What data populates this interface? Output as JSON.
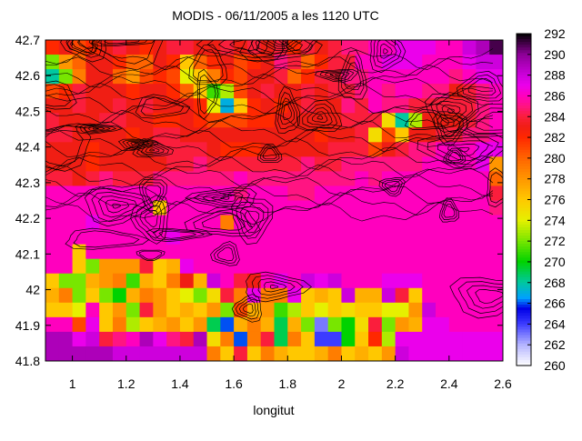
{
  "chart_data": {
    "type": "heatmap",
    "title": "MODIS - 06/11/2005 a les 1120 UTC",
    "xlabel": "longitut",
    "ylabel": "",
    "xlim": [
      0.9,
      2.6
    ],
    "ylim": [
      41.8,
      42.7
    ],
    "x_ticks": [
      "1",
      "1.2",
      "1.4",
      "1.6",
      "1.8",
      "2",
      "2.2",
      "2.4",
      "2.6"
    ],
    "x_tick_values": [
      1.0,
      1.2,
      1.4,
      1.6,
      1.8,
      2.0,
      2.2,
      2.4,
      2.6
    ],
    "y_ticks": [
      "41.8",
      "41.9",
      "42",
      "42.1",
      "42.2",
      "42.3",
      "42.4",
      "42.5",
      "42.6",
      "42.7"
    ],
    "y_tick_values": [
      41.8,
      41.9,
      42.0,
      42.1,
      42.2,
      42.3,
      42.4,
      42.5,
      42.6,
      42.7
    ],
    "colorbar": {
      "min": 260,
      "max": 292,
      "ticks": [
        "292",
        "290",
        "288",
        "286",
        "284",
        "282",
        "280",
        "278",
        "276",
        "274",
        "272",
        "270",
        "268",
        "266",
        "264",
        "262",
        "260"
      ],
      "tick_values": [
        292,
        290,
        288,
        286,
        284,
        282,
        280,
        278,
        276,
        274,
        272,
        270,
        268,
        266,
        264,
        262,
        260
      ]
    },
    "grid": false,
    "overlay": "black contour lines",
    "columns": 34,
    "rows": 22,
    "z": [
      [
        282,
        283,
        281,
        282,
        283,
        284,
        283,
        282,
        283,
        284,
        284,
        283,
        283,
        284,
        283,
        284,
        283,
        284,
        282,
        284,
        283,
        284,
        285,
        285,
        286,
        286,
        287,
        287,
        287,
        286,
        286,
        288,
        289,
        291
      ],
      [
        272,
        278,
        280,
        283,
        283,
        282,
        280,
        280,
        283,
        282,
        276,
        280,
        282,
        283,
        281,
        282,
        283,
        285,
        284,
        280,
        282,
        284,
        284,
        286,
        286,
        287,
        287,
        287,
        286,
        286,
        286,
        287,
        288,
        288
      ],
      [
        268,
        272,
        279,
        283,
        283,
        280,
        278,
        281,
        282,
        281,
        274,
        276,
        279,
        282,
        281,
        283,
        283,
        284,
        280,
        282,
        284,
        284,
        285,
        285,
        286,
        286,
        286,
        286,
        286,
        286,
        285,
        286,
        287,
        287
      ],
      [
        281,
        282,
        284,
        283,
        283,
        283,
        282,
        283,
        283,
        282,
        280,
        276,
        271,
        273,
        281,
        283,
        284,
        283,
        283,
        284,
        283,
        284,
        284,
        285,
        286,
        285,
        286,
        286,
        285,
        285,
        283,
        284,
        285,
        286
      ],
      [
        283,
        283,
        284,
        283,
        283,
        284,
        283,
        284,
        283,
        283,
        283,
        282,
        274,
        267,
        276,
        282,
        283,
        282,
        283,
        284,
        283,
        283,
        285,
        284,
        286,
        285,
        285,
        284,
        284,
        284,
        284,
        284,
        285,
        286
      ],
      [
        284,
        283,
        283,
        283,
        284,
        284,
        283,
        283,
        282,
        282,
        283,
        282,
        281,
        281,
        281,
        282,
        282,
        283,
        283,
        283,
        283,
        283,
        284,
        284,
        284,
        275,
        268,
        273,
        283,
        283,
        283,
        284,
        285,
        286
      ],
      [
        284,
        284,
        283,
        283,
        283,
        283,
        282,
        283,
        284,
        284,
        283,
        283,
        283,
        283,
        283,
        283,
        283,
        283,
        283,
        283,
        282,
        283,
        283,
        284,
        275,
        281,
        276,
        283,
        283,
        284,
        284,
        285,
        285,
        286
      ],
      [
        283,
        283,
        283,
        282,
        283,
        283,
        283,
        283,
        284,
        284,
        284,
        284,
        283,
        282,
        282,
        282,
        283,
        283,
        283,
        283,
        283,
        284,
        284,
        284,
        281,
        283,
        284,
        285,
        285,
        286,
        286,
        286,
        287,
        287
      ],
      [
        283,
        283,
        283,
        282,
        283,
        283,
        283,
        283,
        283,
        284,
        284,
        285,
        284,
        284,
        284,
        284,
        284,
        284,
        284,
        285,
        284,
        284,
        285,
        285,
        285,
        285,
        285,
        285,
        286,
        286,
        286,
        286,
        287,
        278
      ],
      [
        284,
        284,
        283,
        284,
        285,
        284,
        284,
        284,
        285,
        285,
        285,
        285,
        285,
        285,
        286,
        285,
        285,
        285,
        285,
        285,
        285,
        285,
        285,
        286,
        285,
        286,
        286,
        286,
        286,
        286,
        286,
        286,
        286,
        280
      ],
      [
        286,
        286,
        286,
        286,
        286,
        286,
        286,
        286,
        286,
        286,
        286,
        286,
        286,
        286,
        285,
        286,
        286,
        286,
        285,
        285,
        286,
        286,
        286,
        286,
        286,
        286,
        286,
        286,
        286,
        286,
        286,
        286,
        286,
        284
      ],
      [
        286,
        286,
        286,
        286,
        286,
        286,
        286,
        286,
        276,
        286,
        286,
        286,
        286,
        286,
        286,
        286,
        286,
        286,
        286,
        286,
        286,
        286,
        286,
        286,
        286,
        286,
        286,
        286,
        286,
        286,
        286,
        286,
        286,
        285
      ],
      [
        286,
        286,
        286,
        287,
        286,
        286,
        286,
        286,
        286,
        286,
        286,
        286,
        286,
        279,
        286,
        286,
        286,
        286,
        286,
        286,
        286,
        286,
        286,
        286,
        286,
        286,
        286,
        286,
        286,
        286,
        286,
        286,
        286,
        286
      ],
      [
        286,
        286,
        286,
        286,
        286,
        286,
        286,
        286,
        286,
        287,
        286,
        286,
        286,
        286,
        286,
        286,
        286,
        286,
        286,
        286,
        286,
        286,
        286,
        286,
        286,
        286,
        286,
        286,
        286,
        286,
        286,
        286,
        286,
        286
      ],
      [
        286,
        286,
        276,
        286,
        286,
        286,
        286,
        286,
        286,
        286,
        286,
        286,
        286,
        286,
        286,
        286,
        286,
        286,
        286,
        286,
        286,
        286,
        286,
        286,
        286,
        286,
        286,
        286,
        286,
        286,
        286,
        286,
        286,
        286
      ],
      [
        286,
        286,
        276,
        272,
        278,
        278,
        278,
        284,
        276,
        277,
        287,
        286,
        286,
        286,
        286,
        286,
        286,
        286,
        286,
        286,
        286,
        286,
        286,
        286,
        286,
        286,
        286,
        286,
        286,
        286,
        286,
        286,
        286,
        286
      ],
      [
        276,
        272,
        272,
        277,
        278,
        279,
        271,
        277,
        276,
        279,
        283,
        277,
        288,
        286,
        284,
        283,
        286,
        287,
        286,
        288,
        287,
        288,
        286,
        286,
        286,
        287,
        287,
        287,
        286,
        286,
        286,
        286,
        286,
        286
      ],
      [
        277,
        279,
        272,
        276,
        272,
        270,
        277,
        279,
        278,
        276,
        274,
        272,
        275,
        284,
        279,
        287,
        279,
        279,
        287,
        276,
        277,
        276,
        288,
        277,
        277,
        288,
        284,
        276,
        286,
        286,
        286,
        286,
        286,
        286
      ],
      [
        276,
        276,
        274,
        286,
        276,
        278,
        272,
        284,
        278,
        276,
        277,
        276,
        278,
        272,
        281,
        277,
        278,
        271,
        273,
        276,
        274,
        276,
        275,
        276,
        276,
        274,
        274,
        278,
        288,
        286,
        286,
        286,
        286,
        286
      ],
      [
        286,
        286,
        281,
        287,
        276,
        279,
        273,
        276,
        277,
        278,
        276,
        278,
        269,
        266,
        277,
        279,
        277,
        269,
        277,
        272,
        263,
        272,
        270,
        275,
        284,
        272,
        278,
        277,
        287,
        287,
        286,
        286,
        286,
        286
      ],
      [
        289,
        289,
        287,
        288,
        284,
        285,
        286,
        289,
        287,
        285,
        284,
        289,
        275,
        279,
        266,
        279,
        284,
        269,
        279,
        276,
        264,
        264,
        270,
        276,
        282,
        273,
        287,
        287,
        287,
        287,
        287,
        287,
        287,
        287
      ],
      [
        289,
        289,
        289,
        289,
        289,
        288,
        288,
        288,
        288,
        288,
        288,
        288,
        279,
        276,
        284,
        276,
        279,
        277,
        276,
        276,
        277,
        279,
        276,
        277,
        276,
        278,
        288,
        287,
        287,
        287,
        287,
        287,
        287,
        287
      ]
    ]
  }
}
